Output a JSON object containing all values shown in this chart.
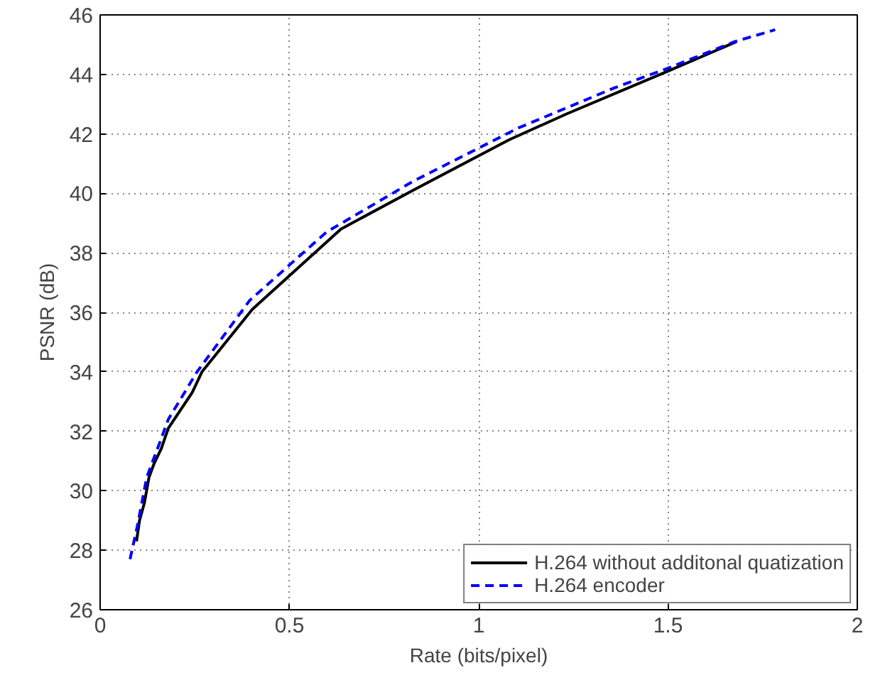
{
  "chart_data": {
    "type": "line",
    "xlabel": "Rate (bits/pixel)",
    "ylabel": "PSNR (dB)",
    "xlim": [
      0,
      2
    ],
    "ylim": [
      26,
      46
    ],
    "xticks": [
      0,
      0.5,
      1,
      1.5,
      2
    ],
    "yticks": [
      26,
      28,
      30,
      32,
      34,
      36,
      38,
      40,
      42,
      44,
      46
    ],
    "grid": true,
    "legend": "bottom right",
    "series": [
      {
        "name": "H.264 without additonal quatization",
        "color": "#000000",
        "line_style": "solid",
        "x": [
          0.096,
          0.104,
          0.117,
          0.129,
          0.142,
          0.161,
          0.18,
          0.243,
          0.269,
          0.402,
          0.636,
          0.826,
          1.08,
          1.232,
          1.498,
          1.681
        ],
        "values": [
          28.3,
          29.0,
          29.6,
          30.45,
          30.9,
          31.4,
          32.1,
          33.3,
          34.0,
          36.1,
          38.8,
          40.1,
          41.8,
          42.67,
          44.1,
          45.1
        ]
      },
      {
        "name": "H.264 encoder",
        "color": "#0000ff",
        "line_style": "dashed",
        "x": [
          0.079,
          0.098,
          0.123,
          0.148,
          0.18,
          0.256,
          0.395,
          0.598,
          0.826,
          1.105,
          1.359,
          1.498,
          1.676,
          1.783
        ],
        "values": [
          27.7,
          28.8,
          30.45,
          31.3,
          32.4,
          34.0,
          36.4,
          38.7,
          40.4,
          42.2,
          43.55,
          44.2,
          45.1,
          45.5
        ]
      }
    ]
  }
}
